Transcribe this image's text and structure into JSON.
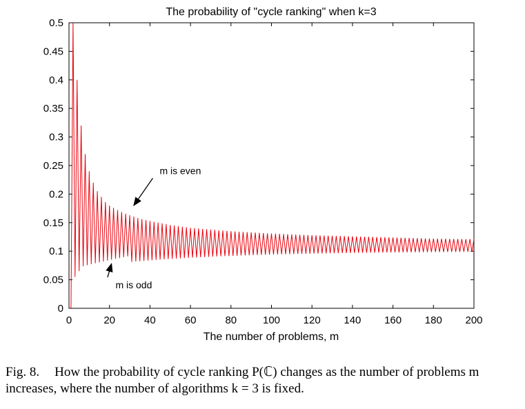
{
  "chart_data": {
    "type": "line",
    "title": "The probability of \"cycle ranking\" when k=3",
    "xlabel": "The number of problems, m",
    "ylabel": "",
    "xlim": [
      0,
      200
    ],
    "ylim": [
      0,
      0.5
    ],
    "xticks": [
      0,
      20,
      40,
      60,
      80,
      100,
      120,
      140,
      160,
      180,
      200
    ],
    "yticks": [
      0,
      0.05,
      0.1,
      0.15,
      0.2,
      0.25,
      0.3,
      0.35,
      0.4,
      0.45,
      0.5
    ],
    "xtick_labels": [
      "0",
      "20",
      "40",
      "60",
      "80",
      "100",
      "120",
      "140",
      "160",
      "180",
      "200"
    ],
    "ytick_labels": [
      "0",
      "0.05",
      "0.1",
      "0.15",
      "0.2",
      "0.25",
      "0.3",
      "0.35",
      "0.4",
      "0.45",
      "0.5"
    ],
    "grid": false,
    "line_color": "#e8000b",
    "series": [
      {
        "x": [
          1,
          2,
          3,
          4,
          5,
          6,
          8,
          10,
          12,
          14,
          16,
          18,
          20,
          25,
          30,
          35,
          40,
          50,
          60,
          70,
          80,
          90,
          100,
          120,
          140,
          160,
          180,
          200
        ],
        "values": [
          0,
          0.5,
          0.055,
          0.4,
          0.065,
          0.32,
          0.27,
          0.24,
          0.22,
          0.205,
          0.195,
          0.186,
          0.18,
          0.17,
          0.163,
          0.157,
          0.153,
          0.146,
          0.141,
          0.138,
          0.135,
          0.133,
          0.131,
          0.128,
          0.126,
          0.124,
          0.122,
          0.121
        ]
      }
    ],
    "annotations": [
      {
        "text": "m is even",
        "x": 55,
        "y": 0.235,
        "arrow_to": [
          32,
          0.18
        ]
      },
      {
        "text": "m is odd",
        "x": 32,
        "y": 0.035,
        "arrow_to": [
          21,
          0.078
        ]
      }
    ]
  },
  "caption": {
    "fig_no": "Fig. 8.",
    "text": "How the probability of cycle ranking P(ℂ) changes as the number of problems m increases, where the number of algorithms k = 3 is fixed."
  }
}
